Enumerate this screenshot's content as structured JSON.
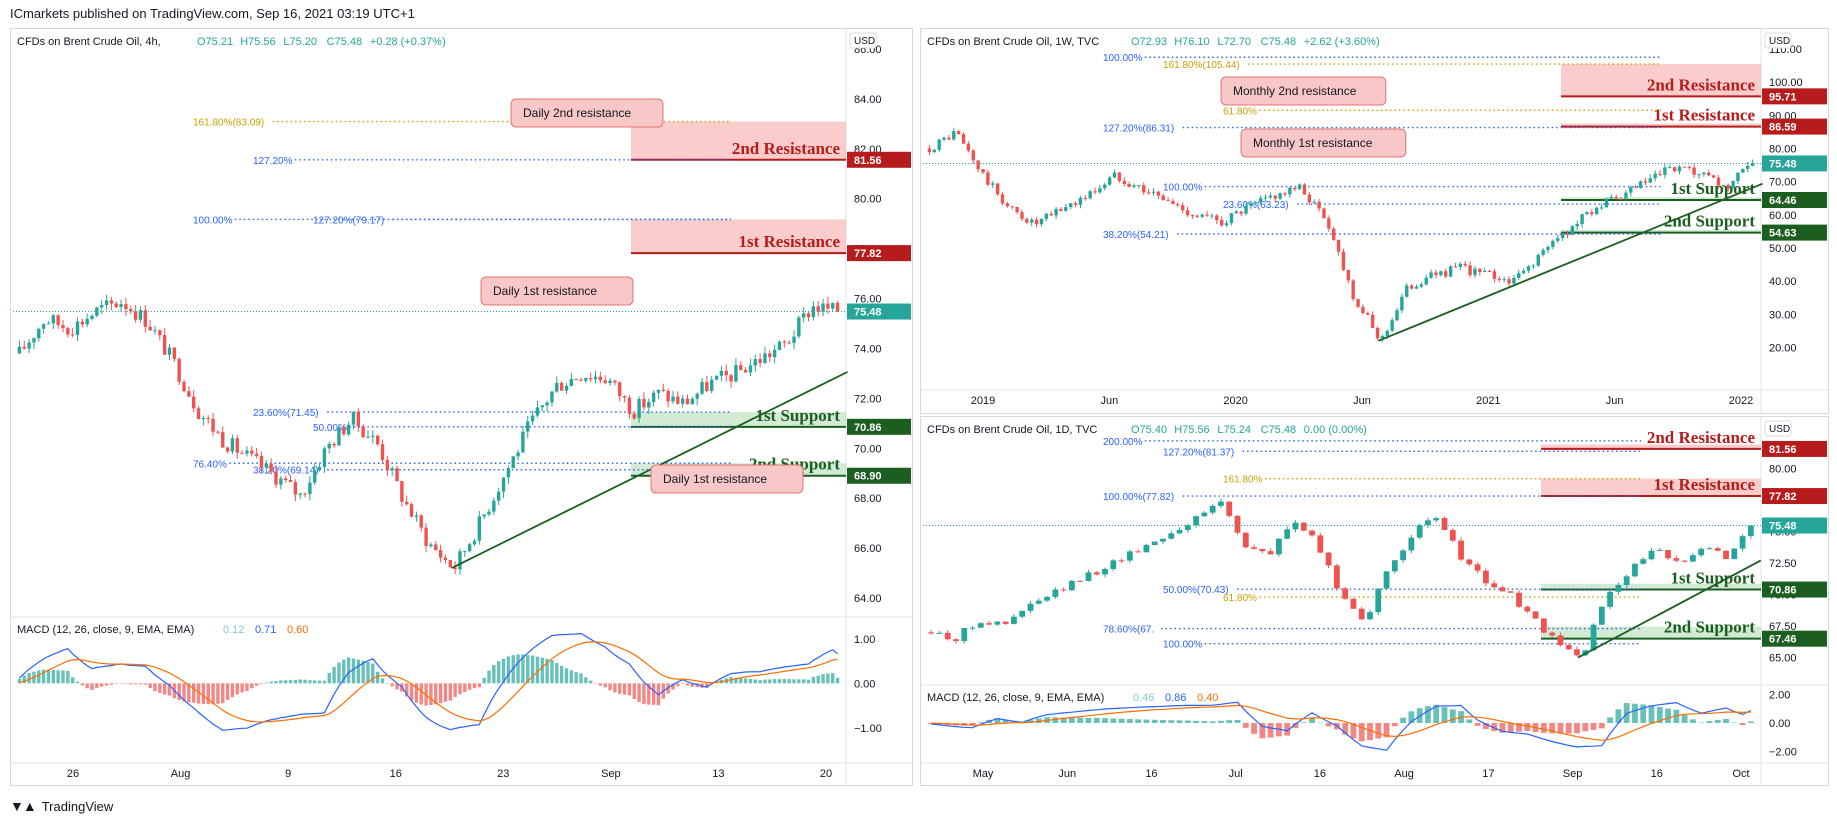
{
  "header": {
    "publisher_line": "ICmarkets published on TradingView.com, Sep 16, 2021 03:19 UTC+1"
  },
  "footer": {
    "brand": "TradingView",
    "icon": "tradingview-logo-icon"
  },
  "colors": {
    "up": "#26a69a",
    "down": "#ef5350",
    "resistance": "#b71c1c",
    "support": "#1b5e20",
    "fib_blue": "#2962ff",
    "fib_orange": "#c8a000",
    "last": "#26a69a"
  },
  "chart_data": [
    {
      "id": "left",
      "type": "candlestick",
      "title": "CFDs on Brent Crude Oil, 4h,",
      "ohlc": {
        "o": "O75.21",
        "h": "H75.56",
        "l": "L75.20",
        "c": "C75.48",
        "chg": "+0.28 (+0.37%)"
      },
      "currency": "USD",
      "ylim": [
        63.4,
        86.4
      ],
      "yticks": [
        "86.00",
        "84.00",
        "82.00",
        "80.00",
        "78.00",
        "76.00",
        "74.00",
        "72.00",
        "70.00",
        "68.00",
        "66.00",
        "64.00"
      ],
      "ytick_values": [
        86,
        84,
        82,
        80,
        78,
        76,
        74,
        72,
        70,
        68,
        66,
        64
      ],
      "xticks": [
        "26",
        "Aug",
        "9",
        "16",
        "23",
        "Sep",
        "13",
        "20"
      ],
      "price_path": [
        73.8,
        75.2,
        74.8,
        75.5,
        75.9,
        75.1,
        73.5,
        71.5,
        70.3,
        69.6,
        68.9,
        68.1,
        70.0,
        71.2,
        70.2,
        68.0,
        66.2,
        65.2,
        67.0,
        69.0,
        71.0,
        72.5,
        73.0,
        72.8,
        71.5,
        72.2,
        71.8,
        72.6,
        73.0,
        73.6,
        74.2,
        75.7,
        75.48
      ],
      "zones": [
        {
          "label": "2nd Resistance",
          "low": 81.56,
          "high": 83.09,
          "kind": "resistance",
          "tag": "81.56"
        },
        {
          "label": "1st Resistance",
          "low": 77.82,
          "high": 79.17,
          "kind": "resistance",
          "tag": "77.82"
        },
        {
          "label": "1st Support",
          "low": 70.86,
          "high": 71.45,
          "kind": "support",
          "tag": "70.86"
        },
        {
          "label": "2nd Support",
          "low": 68.9,
          "high": 69.4,
          "kind": "support",
          "tag": "68.90"
        }
      ],
      "fib_levels": [
        {
          "label": "161.80%(83.09)",
          "value": 83.09,
          "color": "orange"
        },
        {
          "label": "127.20%",
          "value": 81.56,
          "color": "blue"
        },
        {
          "label": "127.20%(79.17)",
          "value": 79.17,
          "color": "blue"
        },
        {
          "label": "100.00%",
          "value": 79.17,
          "color": "blue"
        },
        {
          "label": "23.60%(71.45)",
          "value": 71.45,
          "color": "blue"
        },
        {
          "label": "50.00%",
          "value": 70.86,
          "color": "blue"
        },
        {
          "label": "76.40%",
          "value": 69.4,
          "color": "blue"
        },
        {
          "label": "38.20%(69.14)",
          "value": 69.14,
          "color": "blue"
        }
      ],
      "callouts": [
        "Daily 2nd resistance",
        "Daily 1st resistance",
        "Daily 1st resistance"
      ],
      "last_price": 75.48,
      "last_tag": "75.48",
      "macd": {
        "title": "MACD (12, 26, close, 9, EMA, EMA)",
        "values": [
          "0.12",
          "0.71",
          "0.60"
        ],
        "ylim": [
          -1.7,
          1.4
        ],
        "yticks": [
          "1.00",
          "0.00",
          "−1.00"
        ],
        "ytick_values": [
          1,
          0,
          -1
        ]
      }
    },
    {
      "id": "top-right",
      "type": "candlestick",
      "title": "CFDs on Brent Crude Oil, 1W, TVC",
      "ohlc": {
        "o": "O72.93",
        "h": "H76.10",
        "l": "L72.70",
        "c": "C75.48",
        "chg": "+2.62 (+3.60%)"
      },
      "currency": "USD",
      "ylim": [
        12,
        113
      ],
      "yticks": [
        "110.00",
        "100.00",
        "90.00",
        "80.00",
        "70.00",
        "60.00",
        "50.00",
        "40.00",
        "30.00",
        "20.00"
      ],
      "ytick_values": [
        110,
        100,
        90,
        80,
        70,
        60,
        50,
        40,
        30,
        20
      ],
      "xticks": [
        "2019",
        "Jun",
        "2020",
        "Jun",
        "2021",
        "Jun",
        "2022"
      ],
      "price_path": [
        80,
        85,
        72,
        62,
        57,
        62,
        66,
        72,
        68,
        64,
        60,
        58,
        62,
        66,
        68,
        58,
        35,
        22,
        38,
        42,
        44,
        42,
        40,
        48,
        55,
        62,
        65,
        70,
        74,
        72,
        68,
        75.48
      ],
      "zones": [
        {
          "label": "2nd Resistance",
          "low": 95.71,
          "high": 105.44,
          "kind": "resistance",
          "tag": "95.71"
        },
        {
          "label": "1st Resistance",
          "low": 86.59,
          "high": 87.5,
          "kind": "resistance",
          "tag": "86.59"
        },
        {
          "label": "1st Support",
          "low": 64.46,
          "high": 65.3,
          "kind": "support",
          "tag": "64.46"
        },
        {
          "label": "2nd Support",
          "low": 54.63,
          "high": 55.5,
          "kind": "support",
          "tag": "54.63"
        }
      ],
      "fib_levels": [
        {
          "label": "100.00%",
          "value": 107.5,
          "color": "blue"
        },
        {
          "label": "161.80%(105.44)",
          "value": 105.44,
          "color": "orange"
        },
        {
          "label": "61.80%",
          "value": 91.5,
          "color": "orange"
        },
        {
          "label": "127.20%(86.31)",
          "value": 86.31,
          "color": "blue"
        },
        {
          "label": "100.00%",
          "value": 68.5,
          "color": "blue"
        },
        {
          "label": "23.60%(63.23)",
          "value": 63.23,
          "color": "blue"
        },
        {
          "label": "38.20%(54.21)",
          "value": 54.21,
          "color": "blue"
        }
      ],
      "callouts": [
        "Monthly 2nd resistance",
        "Monthly 1st resistance"
      ],
      "last_price": 75.48,
      "last_tag": "75.48"
    },
    {
      "id": "bottom-right",
      "type": "candlestick",
      "title": "CFDs on Brent Crude Oil, 1D, TVC",
      "ohlc": {
        "o": "O75.40",
        "h": "H75.56",
        "l": "L75.24",
        "c": "C75.48",
        "chg": "0.00 (0.00%)"
      },
      "currency": "USD",
      "ylim": [
        63.3,
        83.3
      ],
      "yticks": [
        "80.00",
        "77.50",
        "75.00",
        "72.50",
        "70.00",
        "67.50",
        "65.00"
      ],
      "ytick_values": [
        80,
        77.5,
        75,
        72.5,
        70,
        67.5,
        65
      ],
      "xticks": [
        "May",
        "Jun",
        "16",
        "Jul",
        "16",
        "Aug",
        "17",
        "Sep",
        "16",
        "Oct"
      ],
      "price_path": [
        67,
        66.5,
        68,
        67.5,
        69,
        70,
        71,
        72,
        73,
        74,
        75,
        76,
        77.5,
        74,
        73,
        76,
        74,
        70,
        68,
        72,
        75,
        76,
        73,
        71,
        70,
        68,
        66,
        65,
        70,
        72,
        73.5,
        72.5,
        74,
        73,
        75.48
      ],
      "zones": [
        {
          "label": "2nd Resistance",
          "low": 81.56,
          "high": 81.9,
          "kind": "resistance",
          "tag": "81.56"
        },
        {
          "label": "1st Resistance",
          "low": 77.82,
          "high": 79.2,
          "kind": "resistance",
          "tag": "77.82"
        },
        {
          "label": "1st Support",
          "low": 70.4,
          "high": 70.86,
          "kind": "support",
          "tag": "70.86"
        },
        {
          "label": "2nd Support",
          "low": 66.5,
          "high": 67.46,
          "kind": "support",
          "tag": "67.46"
        }
      ],
      "fib_levels": [
        {
          "label": "200.00%",
          "value": 82.2,
          "color": "blue"
        },
        {
          "label": "127.20%(81.37)",
          "value": 81.37,
          "color": "blue"
        },
        {
          "label": "161.80%",
          "value": 79.2,
          "color": "orange"
        },
        {
          "label": "100.00%(77.82)",
          "value": 77.82,
          "color": "blue"
        },
        {
          "label": "50.00%(70.43)",
          "value": 70.43,
          "color": "blue"
        },
        {
          "label": "61.80%",
          "value": 69.8,
          "color": "orange"
        },
        {
          "label": "78.60%(67.",
          "value": 67.3,
          "color": "blue"
        },
        {
          "label": "100.00%",
          "value": 66.1,
          "color": "blue"
        }
      ],
      "callouts": [],
      "last_price": 75.48,
      "last_tag": "75.48",
      "macd": {
        "title": "MACD (12, 26, close, 9, EMA, EMA)",
        "values": [
          "0.46",
          "0.86",
          "0.40"
        ],
        "ylim": [
          -2.4,
          2.4
        ],
        "yticks": [
          "2.00",
          "0.00",
          "−2.00"
        ],
        "ytick_values": [
          2,
          0,
          -2
        ]
      }
    }
  ]
}
